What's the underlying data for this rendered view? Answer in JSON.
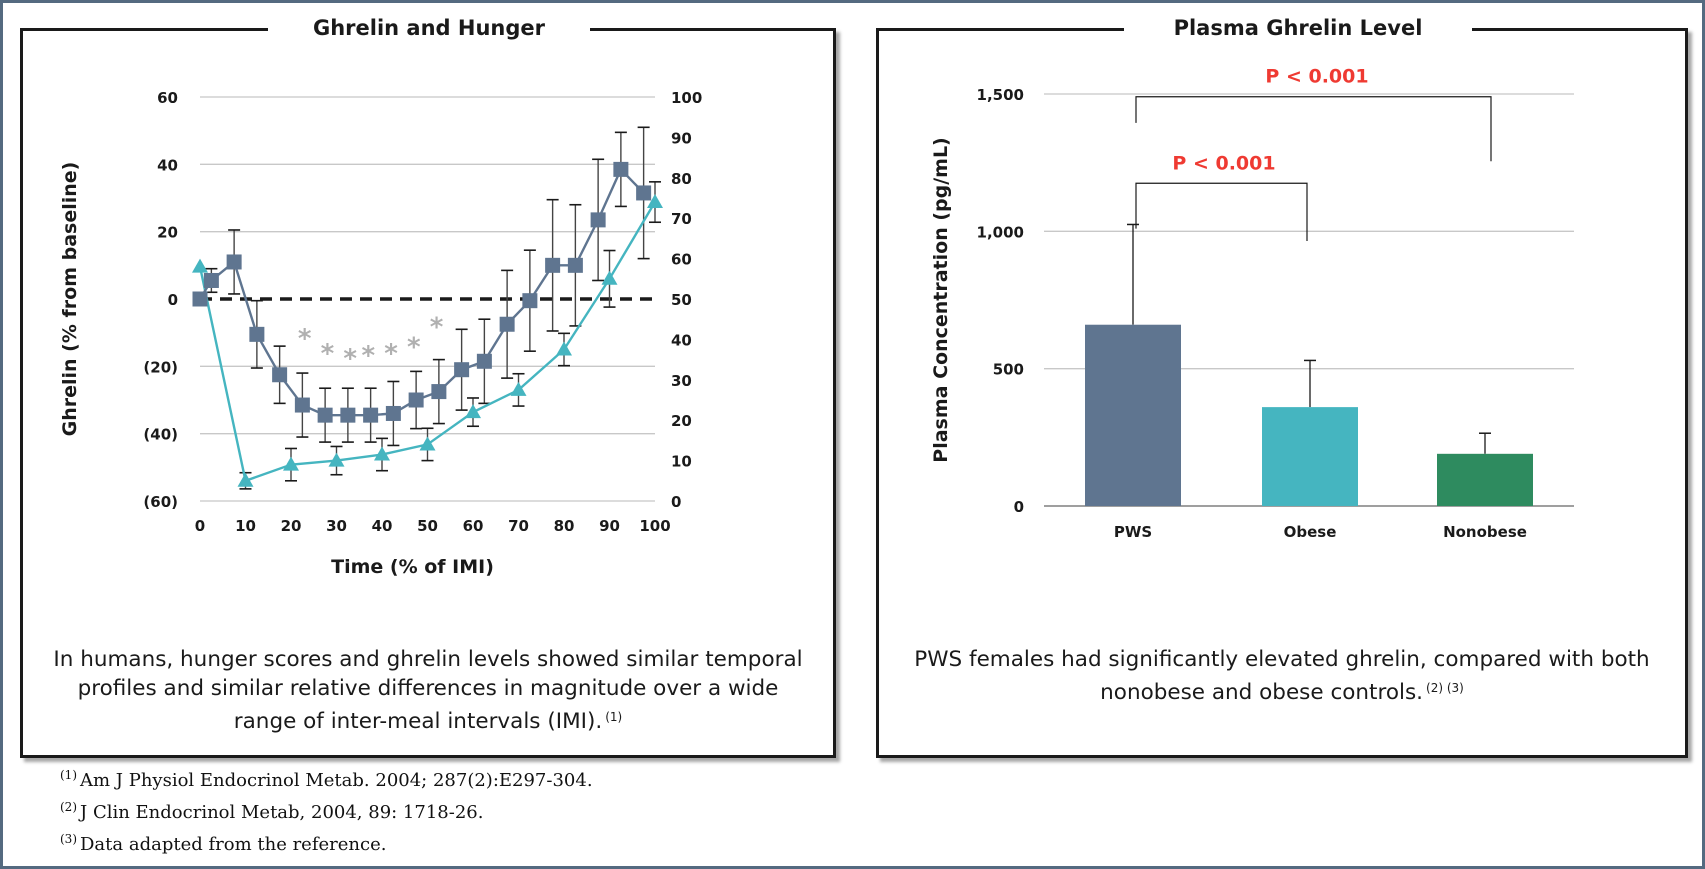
{
  "colors": {
    "frame": "#546a80",
    "ghrelin_series": "#5f7590",
    "hunger_series": "#45b5c0",
    "pws_bar": "#5f7590",
    "obese_bar": "#45b5c0",
    "nonobese_bar": "#2e8b5f",
    "significance_text": "#ef3a32",
    "asterisk": "#b0b0b0"
  },
  "left_panel": {
    "title": "Ghrelin and Hunger",
    "caption": "In humans, hunger scores and ghrelin levels showed similar temporal profiles and similar relative differences in magnitude over a wide range of inter-meal intervals (IMI).",
    "caption_ref": "(1)"
  },
  "right_panel": {
    "title": "Plasma Ghrelin Level",
    "caption": "PWS females had significantly elevated ghrelin, compared with both nonobese and obese controls.",
    "caption_ref": "(2) (3)"
  },
  "references": [
    {
      "mark": "(1)",
      "text": "Am J Physiol Endocrinol Metab. 2004; 287(2):E297-304."
    },
    {
      "mark": "(2)",
      "text": "J Clin Endocrinol Metab, 2004, 89: 1718-26."
    },
    {
      "mark": "(3)",
      "text": "Data adapted from the reference."
    }
  ],
  "chart_data": [
    {
      "type": "line",
      "title": "Ghrelin and Hunger",
      "xlabel": "Time (% of IMI)",
      "ylabel": "Ghrelin (% from baseline)",
      "y2label": "",
      "xlim": [
        0,
        100
      ],
      "ylim": [
        -60,
        60
      ],
      "y2lim": [
        0,
        100
      ],
      "x_ticks": [
        "0",
        "10",
        "20",
        "30",
        "40",
        "50",
        "60",
        "70",
        "80",
        "90",
        "100"
      ],
      "y_ticks": [
        "60",
        "40",
        "20",
        "0",
        "(20)",
        "(40)",
        "(60)"
      ],
      "y2_ticks": [
        "100",
        "90",
        "80",
        "70",
        "60",
        "50",
        "40",
        "30",
        "20",
        "10",
        "0"
      ],
      "grid": true,
      "series": [
        {
          "marker": "square",
          "axis": "left",
          "x": [
            0,
            2.5,
            7.5,
            12.5,
            17.5,
            22.5,
            27.5,
            32.5,
            37.5,
            42.5,
            47.5,
            52.5,
            57.5,
            62.5,
            67.5,
            72.5,
            77.5,
            82.5,
            87.5,
            92.5,
            97.5
          ],
          "y": [
            0,
            5.5,
            11,
            -10.5,
            -22.5,
            -31.5,
            -34.5,
            -34.5,
            -34.5,
            -34,
            -30,
            -27.5,
            -21,
            -18.5,
            -7.5,
            -0.5,
            10,
            10,
            23.5,
            38.5,
            31.5
          ],
          "error": [
            0,
            3.5,
            9.5,
            10,
            8.5,
            9.5,
            8,
            8,
            8,
            9.5,
            8.5,
            9.5,
            12,
            12.5,
            16,
            15,
            19.5,
            18,
            18,
            11,
            19.5
          ]
        },
        {
          "marker": "triangle",
          "axis": "right",
          "x": [
            0,
            10,
            20,
            30,
            40,
            50,
            60,
            70,
            80,
            90,
            100
          ],
          "y": [
            58,
            5,
            9,
            10,
            11.5,
            14,
            22,
            27.5,
            37.5,
            55,
            74
          ],
          "error": [
            0,
            2,
            4,
            3.5,
            4,
            4,
            3.5,
            4,
            4,
            7,
            5
          ]
        }
      ],
      "markers": {
        "symbol": "*",
        "x": [
          23,
          28,
          33,
          37,
          42,
          47,
          52
        ],
        "y": [
          -11,
          -15.5,
          -17,
          -16,
          -15.5,
          -13.5,
          -7.5
        ]
      }
    },
    {
      "type": "bar",
      "title": "Plasma Ghrelin Level",
      "xlabel": "",
      "ylabel": "Plasma Concentration (pg/mL)",
      "categories": [
        "PWS",
        "Obese",
        "Nonobese"
      ],
      "values": [
        660,
        360,
        190
      ],
      "errors": [
        365,
        170,
        75
      ],
      "ylim": [
        0,
        1500
      ],
      "y_ticks": [
        "0",
        "500",
        "1,000",
        "1,500"
      ],
      "grid": true,
      "significance": [
        {
          "from": "PWS",
          "to": "Obese",
          "label": "P < 0.001"
        },
        {
          "from": "PWS",
          "to": "Nonobese",
          "label": "P < 0.001"
        }
      ]
    }
  ]
}
